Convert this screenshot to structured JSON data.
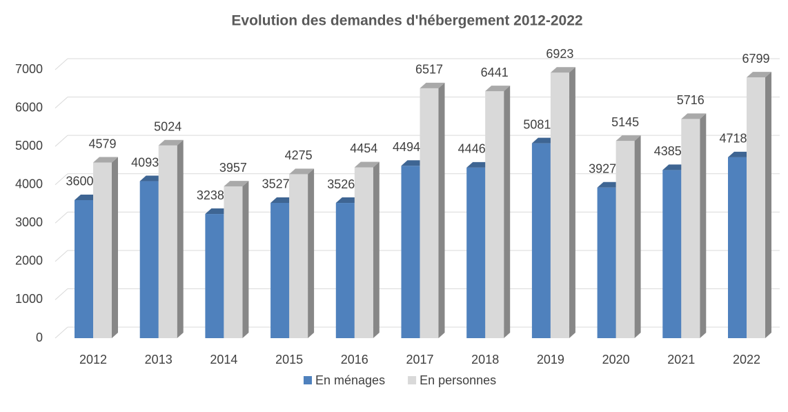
{
  "chart_data": {
    "type": "bar3d",
    "title": "Evolution des demandes d'hébergement 2012-2022",
    "categories": [
      "2012",
      "2013",
      "2014",
      "2015",
      "2016",
      "2017",
      "2018",
      "2019",
      "2020",
      "2021",
      "2022"
    ],
    "series": [
      {
        "name": "En ménages",
        "color": "#4f81bd",
        "values": [
          3600,
          4093,
          3238,
          3527,
          3526,
          4494,
          4446,
          5081,
          3927,
          4385,
          4718
        ]
      },
      {
        "name": "En personnes",
        "color": "#d9d9d9",
        "values": [
          4579,
          5024,
          3957,
          4275,
          4454,
          6517,
          6441,
          6923,
          5145,
          5716,
          6799
        ]
      }
    ],
    "ylim": [
      0,
      7000
    ],
    "yticks": [
      0,
      1000,
      2000,
      3000,
      4000,
      5000,
      6000,
      7000
    ],
    "grid": true,
    "legend": "bottom"
  }
}
